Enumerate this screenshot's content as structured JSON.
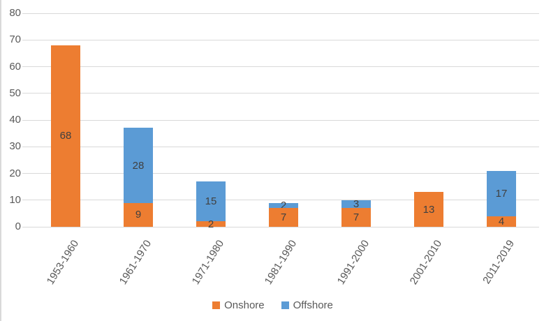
{
  "chart_data": {
    "type": "bar",
    "stacked": true,
    "title": "",
    "xlabel": "",
    "ylabel": "",
    "categories": [
      "1953-1960",
      "1961-1970",
      "1971-1980",
      "1981-1990",
      "1991-2000",
      "2001-2010",
      "2011-2019"
    ],
    "series": [
      {
        "name": "Onshore",
        "color": "#ED7D31",
        "values": [
          68,
          9,
          2,
          7,
          7,
          13,
          4
        ]
      },
      {
        "name": "Offshore",
        "color": "#5B9BD5",
        "values": [
          0,
          28,
          15,
          2,
          3,
          0,
          17
        ]
      }
    ],
    "totals": [
      68,
      37,
      17,
      9,
      10,
      13,
      21
    ],
    "ylim": [
      0,
      80
    ],
    "yticks": [
      0,
      10,
      20,
      30,
      40,
      50,
      60,
      70,
      80
    ],
    "grid": true,
    "data_labels": true,
    "legend_position": "bottom"
  },
  "legend": {
    "items": [
      {
        "label": "Onshore",
        "color": "#ED7D31"
      },
      {
        "label": "Offshore",
        "color": "#5B9BD5"
      }
    ]
  },
  "colors": {
    "onshore": "#ED7D31",
    "offshore": "#5B9BD5",
    "axis_text": "#595959",
    "bar_label": "#404040",
    "gridline": "#D9D9D9"
  }
}
